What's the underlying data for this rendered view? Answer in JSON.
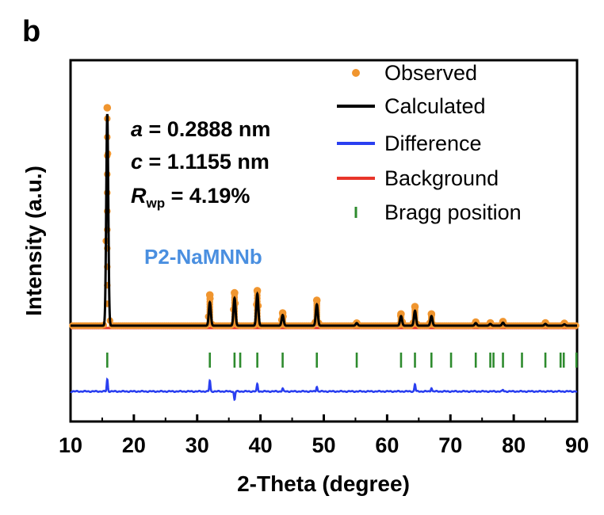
{
  "panel_label": "b",
  "colors": {
    "observed": "#f0952e",
    "calculated": "#000000",
    "difference": "#2a3ff0",
    "background": "#e8352a",
    "bragg": "#2e8b2e",
    "phase_label": "#4a8fe0"
  },
  "annotations": {
    "a_sym": "a",
    "a_val": " = 0.2888 nm",
    "c_sym": "c",
    "c_val": " = 1.1155 nm",
    "r_sym": "R",
    "r_sub": "wp",
    "r_val": " = 4.19%",
    "phase": "P2-NaMNNb"
  },
  "chart_data": {
    "type": "line",
    "title": "",
    "xlabel": "2-Theta (degree)",
    "ylabel": "Intensity (a.u.)",
    "xlim": [
      10,
      90
    ],
    "xticks": [
      10,
      20,
      30,
      40,
      50,
      60,
      70,
      80,
      90
    ],
    "xtick_labels": [
      "10",
      "20",
      "30",
      "40",
      "50",
      "60",
      "70",
      "80",
      "90"
    ],
    "y_ticks_shown": false,
    "legend_position": "top-right",
    "series": [
      {
        "name": "Observed",
        "style": "points"
      },
      {
        "name": "Calculated",
        "style": "line"
      },
      {
        "name": "Difference",
        "style": "line"
      },
      {
        "name": "Background",
        "style": "line"
      },
      {
        "name": "Bragg position",
        "style": "ticks"
      }
    ],
    "peaks": [
      {
        "x": 15.8,
        "height": 1.0,
        "obs_extra": 0.03
      },
      {
        "x": 32.0,
        "height": 0.11,
        "obs_extra": 0.035
      },
      {
        "x": 35.9,
        "height": 0.13,
        "obs_extra": 0.025
      },
      {
        "x": 39.5,
        "height": 0.15,
        "obs_extra": 0.015
      },
      {
        "x": 43.5,
        "height": 0.05,
        "obs_extra": 0.01
      },
      {
        "x": 48.9,
        "height": 0.1,
        "obs_extra": 0.02
      },
      {
        "x": 55.2,
        "height": 0.012,
        "obs_extra": 0.0
      },
      {
        "x": 62.2,
        "height": 0.045,
        "obs_extra": 0.01
      },
      {
        "x": 64.4,
        "height": 0.07,
        "obs_extra": 0.02
      },
      {
        "x": 67.0,
        "height": 0.045,
        "obs_extra": 0.01
      },
      {
        "x": 74.0,
        "height": 0.012,
        "obs_extra": 0.005
      },
      {
        "x": 76.3,
        "height": 0.008,
        "obs_extra": 0.005
      },
      {
        "x": 78.3,
        "height": 0.014,
        "obs_extra": 0.005
      },
      {
        "x": 85.0,
        "height": 0.008,
        "obs_extra": 0.005
      },
      {
        "x": 88.0,
        "height": 0.006,
        "obs_extra": 0.005
      }
    ],
    "bragg_positions": [
      15.8,
      32.0,
      35.9,
      36.8,
      39.5,
      43.5,
      48.9,
      55.2,
      62.2,
      64.4,
      67.0,
      70.1,
      74.0,
      76.3,
      76.8,
      78.3,
      81.3,
      85.0,
      87.4,
      87.9,
      89.9
    ],
    "difference_spikes": [
      {
        "x": 15.8,
        "value": 0.05
      },
      {
        "x": 32.0,
        "value": 0.045
      },
      {
        "x": 35.9,
        "value": -0.035
      },
      {
        "x": 39.5,
        "value": 0.03
      },
      {
        "x": 43.5,
        "value": 0.012
      },
      {
        "x": 48.9,
        "value": 0.02
      },
      {
        "x": 64.4,
        "value": 0.03
      },
      {
        "x": 67.0,
        "value": 0.015
      },
      {
        "x": 78.3,
        "value": 0.006
      }
    ]
  }
}
